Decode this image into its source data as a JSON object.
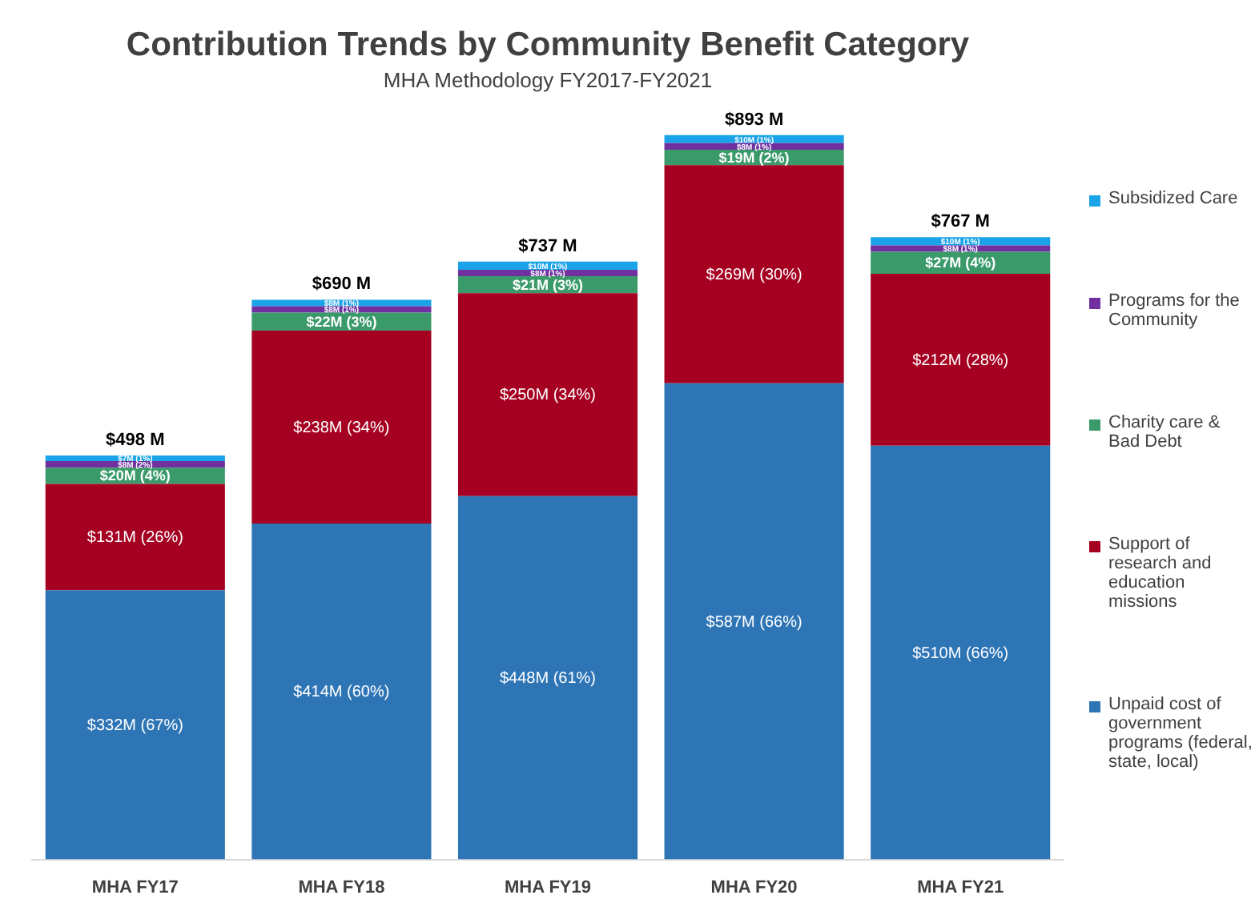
{
  "chart_data": {
    "type": "bar",
    "title": "Contribution Trends by Community Benefit Category",
    "subtitle": "MHA Methodology FY2017-FY2021",
    "stacked": true,
    "legend": "right",
    "categories": [
      "MHA FY17",
      "MHA FY18",
      "MHA FY19",
      "MHA FY20",
      "MHA FY21"
    ],
    "series": [
      {
        "name": "Unpaid cost of government programs (federal, state, local)",
        "color": "#2e75b6",
        "values": [
          332000000,
          414000000,
          448000000,
          587000000,
          510000000
        ],
        "value_labels": [
          "$332M (67%)",
          "$414M (60%)",
          "$448M (61%)",
          "$587M (66%)",
          "$510M (66%)"
        ]
      },
      {
        "name": "Support of research and education missions",
        "color": "#a50021",
        "values": [
          131000000,
          238000000,
          250000000,
          269000000,
          212000000
        ],
        "value_labels": [
          "$131M (26%)",
          "$238M (34%)",
          "$250M (34%)",
          "$269M (30%)",
          "$212M (28%)"
        ]
      },
      {
        "name": "Charity care & Bad Debt",
        "color": "#3a9a6a",
        "values": [
          20000000,
          22000000,
          21000000,
          19000000,
          27000000
        ],
        "value_labels": [
          "$20M (4%)",
          "$22M (3%)",
          "$21M (3%)",
          "$19M (2%)",
          "$27M (4%)"
        ]
      },
      {
        "name": "Programs for the Community",
        "color": "#7030a0",
        "values": [
          8000000,
          8000000,
          8000000,
          8000000,
          8000000
        ],
        "value_labels": [
          "$8M (2%)",
          "$8M (1%)",
          "$8M (1%)",
          "$8M (1%)",
          "$8M (1%)"
        ]
      },
      {
        "name": "Subsidized Care",
        "color": "#1aa3e8",
        "values": [
          7000000,
          8000000,
          10000000,
          10000000,
          10000000
        ],
        "value_labels": [
          "$7M (1%)",
          "$8M (1%)",
          "$10M (1%)",
          "$10M (1%)",
          "$10M (1%)"
        ]
      }
    ],
    "totals": [
      "$498 M",
      "$690 M",
      "$737 M",
      "$893 M",
      "$767 M"
    ]
  }
}
